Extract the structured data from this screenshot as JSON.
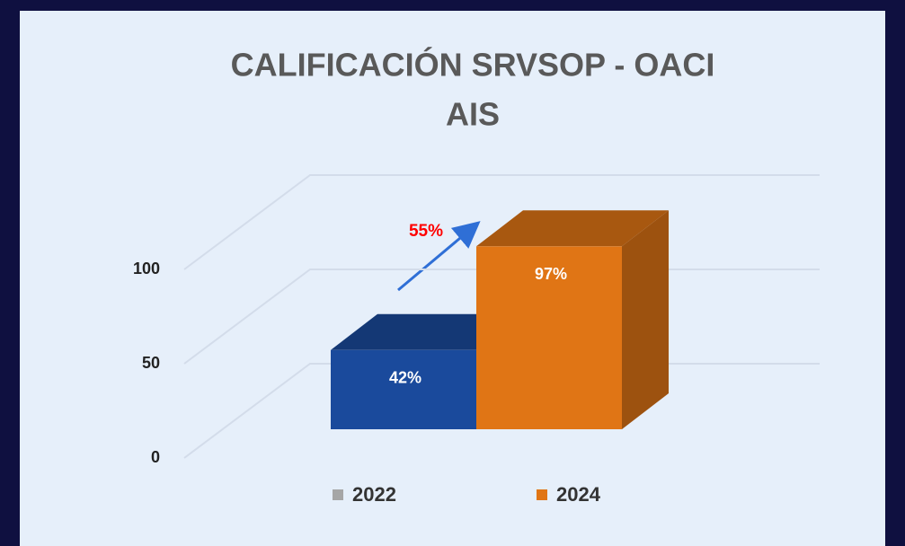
{
  "chart_data": {
    "type": "bar3d",
    "title": "CALIFICACIÓN SRVSOP - OACI",
    "subtitle": "AIS",
    "categories": [
      null
    ],
    "series": [
      {
        "name": "2022",
        "color": "#1a4a9c",
        "legend_color": "#a6a6a6",
        "values": [
          42
        ],
        "value_labels": [
          "42%"
        ]
      },
      {
        "name": "2024",
        "color": "#e07515",
        "legend_color": "#e07515",
        "values": [
          97
        ],
        "value_labels": [
          "97%"
        ]
      }
    ],
    "annotation": {
      "text": "55%",
      "color": "#ff0000"
    },
    "ylim": [
      0,
      100
    ],
    "yticks": [
      0,
      50,
      100
    ],
    "grid": true,
    "legend": "bottom"
  }
}
